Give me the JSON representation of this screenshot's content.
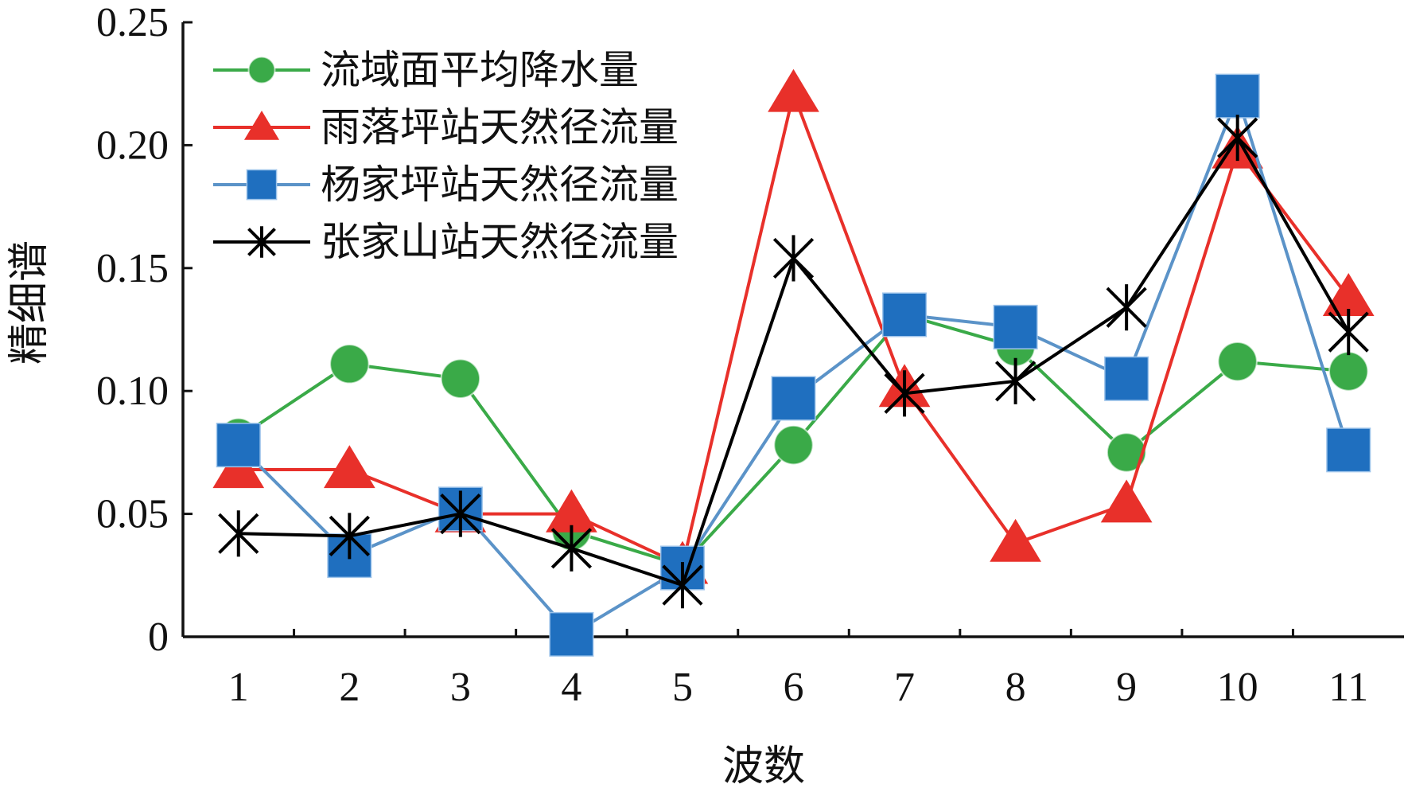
{
  "chart_data": {
    "type": "line",
    "xlabel": "波数",
    "ylabel": "精细谱",
    "categories": [
      "1",
      "2",
      "3",
      "4",
      "5",
      "6",
      "7",
      "8",
      "9",
      "10",
      "11"
    ],
    "yticks": [
      "0",
      "0.05",
      "0.10",
      "0.15",
      "0.20",
      "0.25"
    ],
    "ylim": [
      0,
      0.25
    ],
    "grid": false,
    "legend_position": "top-left",
    "series": [
      {
        "name": "流域面平均降水量",
        "color": "#3aaa48",
        "marker": "circle",
        "values": [
          0.081,
          0.111,
          0.105,
          0.043,
          0.029,
          0.078,
          0.131,
          0.118,
          0.075,
          0.112,
          0.108
        ]
      },
      {
        "name": "雨落坪站天然径流量",
        "color": "#e8302a",
        "marker": "triangle",
        "values": [
          0.068,
          0.068,
          0.05,
          0.05,
          0.029,
          0.221,
          0.101,
          0.038,
          0.054,
          0.198,
          0.138
        ]
      },
      {
        "name": "杨家坪站天然径流量",
        "color": "#5b93c8",
        "marker": "square",
        "marker_color": "#1f6fbf",
        "values": [
          0.078,
          0.033,
          0.052,
          0.001,
          0.028,
          0.097,
          0.131,
          0.126,
          0.105,
          0.22,
          0.076
        ]
      },
      {
        "name": "张家山站天然径流量",
        "color": "#000000",
        "marker": "star",
        "values": [
          0.042,
          0.041,
          0.05,
          0.036,
          0.021,
          0.154,
          0.099,
          0.104,
          0.134,
          0.203,
          0.124
        ]
      }
    ]
  }
}
